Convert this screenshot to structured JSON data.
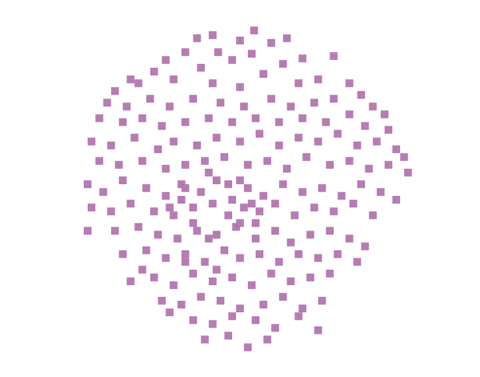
{
  "chart_data": {
    "type": "scatter",
    "marker": "square",
    "color": "#b97bb6",
    "grid": false,
    "tick_labels": false,
    "xlim": [
      0,
      600
    ],
    "ylim": [
      0,
      471
    ],
    "x": [
      245,
      265,
      300,
      318,
      340,
      360,
      272,
      230,
      290,
      315,
      355,
      380,
      420,
      205,
      190,
      250,
      330,
      400,
      440,
      170,
      160,
      140,
      215,
      265,
      300,
      375,
      130,
      155,
      185,
      210,
      240,
      275,
      305,
      340,
      365,
      395,
      420,
      455,
      470,
      485,
      120,
      150,
      175,
      200,
      230,
      260,
      290,
      320,
      350,
      380,
      410,
      440,
      460,
      490,
      110,
      135,
      165,
      195,
      215,
      245,
      270,
      300,
      325,
      350,
      375,
      400,
      425,
      450,
      475,
      500,
      510,
      120,
      145,
      175,
      205,
      230,
      255,
      280,
      310,
      335,
      360,
      385,
      415,
      440,
      465,
      490,
      515,
      105,
      125,
      150,
      180,
      205,
      225,
      250,
      270,
      290,
      310,
      330,
      355,
      380,
      405,
      430,
      455,
      480,
      500,
      110,
      135,
      160,
      190,
      215,
      240,
      265,
      285,
      305,
      325,
      345,
      370,
      395,
      420,
      445,
      470,
      105,
      140,
      170,
      195,
      220,
      245,
      270,
      295,
      320,
      345,
      365,
      390,
      415,
      440,
      460,
      150,
      180,
      205,
      230,
      255,
      280,
      300,
      325,
      350,
      375,
      400,
      425,
      450,
      175,
      160,
      190,
      215,
      240,
      265,
      290,
      315,
      340,
      365,
      390,
      415,
      200,
      225,
      250,
      275,
      300,
      330,
      355,
      380,
      405,
      210,
      240,
      265,
      290,
      320,
      345,
      375,
      400,
      255,
      285,
      310,
      335,
      230,
      260,
      285,
      240,
      300,
      260,
      230,
      270,
      320,
      210,
      225,
      300,
      315
    ],
    "values": [
      429,
      433,
      426,
      439,
      423,
      429,
      411,
      411,
      401,
      409,
      396,
      403,
      406,
      401,
      386,
      391,
      383,
      376,
      371,
      371,
      376,
      361,
      376,
      371,
      366,
      371,
      346,
      341,
      351,
      341,
      351,
      346,
      341,
      351,
      341,
      346,
      351,
      356,
      341,
      331,
      326,
      321,
      326,
      316,
      321,
      326,
      321,
      326,
      321,
      326,
      321,
      331,
      316,
      311,
      296,
      291,
      301,
      286,
      296,
      291,
      301,
      296,
      306,
      291,
      301,
      296,
      306,
      291,
      296,
      286,
      276,
      271,
      266,
      271,
      261,
      266,
      271,
      276,
      266,
      271,
      261,
      276,
      266,
      271,
      261,
      266,
      256,
      241,
      231,
      246,
      236,
      226,
      241,
      231,
      246,
      221,
      236,
      226,
      241,
      231,
      236,
      226,
      241,
      231,
      221,
      211,
      206,
      216,
      206,
      201,
      211,
      216,
      201,
      211,
      206,
      216,
      201,
      211,
      206,
      216,
      201,
      181,
      181,
      186,
      176,
      171,
      181,
      176,
      186,
      171,
      181,
      166,
      176,
      181,
      171,
      161,
      151,
      156,
      146,
      151,
      141,
      156,
      146,
      151,
      141,
      151,
      146,
      151,
      141,
      131,
      116,
      121,
      111,
      126,
      116,
      121,
      111,
      126,
      116,
      121,
      126,
      91,
      86,
      96,
      91,
      81,
      86,
      96,
      81,
      91,
      76,
      66,
      61,
      71,
      66,
      56,
      71,
      53,
      41,
      46,
      31,
      41,
      236,
      256,
      241,
      191,
      191,
      171,
      141,
      131,
      191,
      211,
      221,
      246,
      216
    ]
  }
}
